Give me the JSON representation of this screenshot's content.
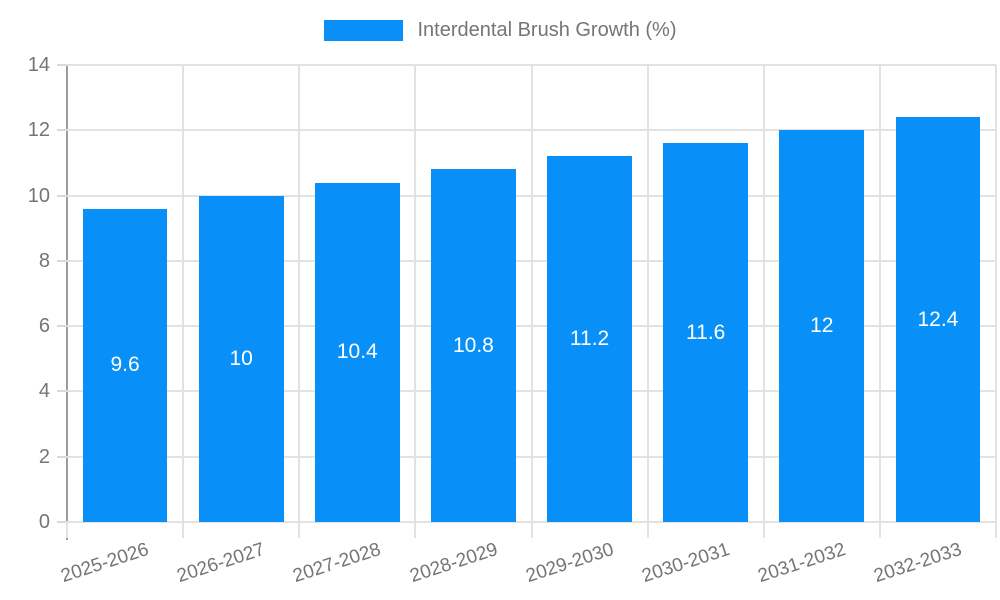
{
  "chart_data": {
    "type": "bar",
    "legend": "Interdental Brush Growth (%)",
    "legend_position": "top",
    "categories": [
      "2025-2026",
      "2026-2027",
      "2027-2028",
      "2028-2029",
      "2029-2030",
      "2030-2031",
      "2031-2032",
      "2032-2033"
    ],
    "values": [
      9.6,
      10,
      10.4,
      10.8,
      11.2,
      11.6,
      12,
      12.4
    ],
    "value_labels": [
      "9.6",
      "10",
      "10.4",
      "10.8",
      "11.2",
      "11.6",
      "12",
      "12.4"
    ],
    "ylim": [
      0,
      14
    ],
    "ytick_step": 2,
    "ytick_labels": [
      "0",
      "2",
      "4",
      "6",
      "8",
      "10",
      "12",
      "14"
    ],
    "grid": "on",
    "xlabel": "",
    "ylabel": ""
  },
  "colors": {
    "bar": "#0890f8",
    "bar_label_text": "#ffffff",
    "axis_text": "#757575",
    "gridline": "#e2e2e2",
    "axis_line": "#9e9e9e"
  }
}
